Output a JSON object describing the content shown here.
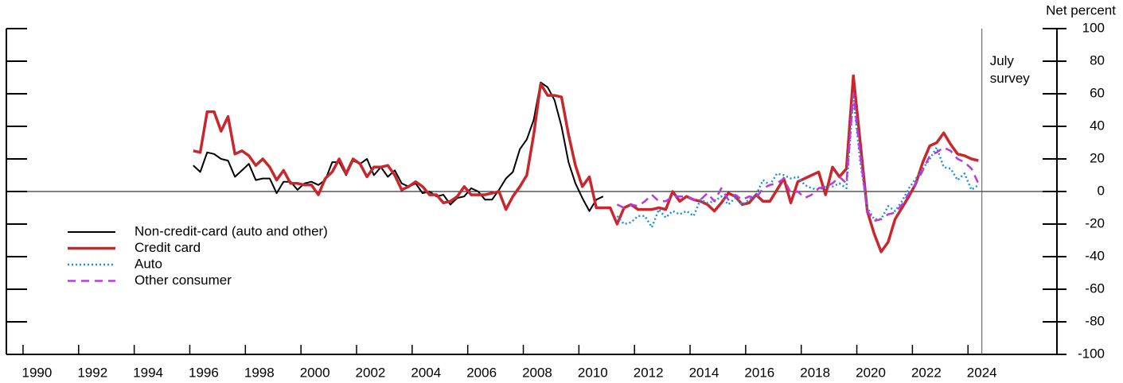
{
  "chart_data": {
    "type": "line",
    "y_label": "Net percent",
    "annotation": {
      "text": "July survey",
      "x": 2024.5
    },
    "legend": "left",
    "zero_line": true,
    "xlim": [
      1989.4,
      2027.2
    ],
    "ylim": [
      -100,
      100
    ],
    "xticks": [
      1990,
      1992,
      1994,
      1996,
      1998,
      2000,
      2002,
      2004,
      2006,
      2008,
      2010,
      2012,
      2014,
      2016,
      2018,
      2020,
      2022,
      2024
    ],
    "yticks": [
      -100,
      -80,
      -60,
      -40,
      -20,
      0,
      20,
      40,
      60,
      80,
      100
    ],
    "x": [
      1996.125,
      1996.375,
      1996.625,
      1996.875,
      1997.125,
      1997.375,
      1997.625,
      1997.875,
      1998.125,
      1998.375,
      1998.625,
      1998.875,
      1999.125,
      1999.375,
      1999.625,
      1999.875,
      2000.125,
      2000.375,
      2000.625,
      2000.875,
      2001.125,
      2001.375,
      2001.625,
      2001.875,
      2002.125,
      2002.375,
      2002.625,
      2002.875,
      2003.125,
      2003.375,
      2003.625,
      2003.875,
      2004.125,
      2004.375,
      2004.625,
      2004.875,
      2005.125,
      2005.375,
      2005.625,
      2005.875,
      2006.125,
      2006.375,
      2006.625,
      2006.875,
      2007.125,
      2007.375,
      2007.625,
      2007.875,
      2008.125,
      2008.375,
      2008.625,
      2008.875,
      2009.125,
      2009.375,
      2009.625,
      2009.875,
      2010.125,
      2010.375,
      2010.625,
      2010.875,
      2011.125,
      2011.375,
      2011.625,
      2011.875,
      2012.125,
      2012.375,
      2012.625,
      2012.875,
      2013.125,
      2013.375,
      2013.625,
      2013.875,
      2014.125,
      2014.375,
      2014.625,
      2014.875,
      2015.125,
      2015.375,
      2015.625,
      2015.875,
      2016.125,
      2016.375,
      2016.625,
      2016.875,
      2017.125,
      2017.375,
      2017.625,
      2017.875,
      2018.125,
      2018.375,
      2018.625,
      2018.875,
      2019.125,
      2019.375,
      2019.625,
      2019.875,
      2020.125,
      2020.375,
      2020.625,
      2020.875,
      2021.125,
      2021.375,
      2021.625,
      2021.875,
      2022.125,
      2022.375,
      2022.625,
      2022.875,
      2023.125,
      2023.375,
      2023.625,
      2023.875,
      2024.125,
      2024.375
    ],
    "series": [
      {
        "name": "Non-credit-card (auto and other)",
        "color": "#000000",
        "width": 2,
        "dash": "solid",
        "values": [
          16,
          12,
          24,
          23,
          20,
          19,
          9,
          13,
          17,
          7,
          8,
          8,
          -1,
          6,
          6,
          1,
          5,
          6,
          4,
          7,
          18,
          18,
          10,
          19,
          17,
          20,
          10,
          15,
          9,
          13,
          5,
          3,
          5,
          -1,
          0,
          -3,
          -2,
          -8,
          -4,
          -3,
          2,
          0,
          -5,
          -5,
          1,
          8,
          12,
          26,
          32,
          44,
          67,
          64,
          56,
          40,
          18,
          5,
          -4,
          -12,
          -5,
          -3,
          null,
          null,
          null,
          null,
          null,
          null,
          null,
          null,
          null,
          null,
          null,
          null,
          null,
          null,
          null,
          null,
          null,
          null,
          null,
          null,
          null,
          null,
          null,
          null,
          null,
          null,
          null,
          null,
          null,
          null,
          null,
          null,
          null,
          null,
          null,
          null,
          null,
          null,
          null,
          null,
          null,
          null,
          null,
          null,
          null,
          null,
          null,
          null,
          null,
          null,
          null,
          null,
          null,
          null
        ]
      },
      {
        "name": "Credit card",
        "color": "#c8282d",
        "width": 3.5,
        "dash": "solid",
        "values": [
          25,
          24,
          49,
          49,
          37,
          46,
          23,
          25,
          22,
          16,
          20,
          15,
          7,
          13,
          5,
          5,
          4,
          4,
          -2,
          8,
          12,
          20,
          11,
          20,
          17,
          9,
          15,
          15,
          16,
          10,
          1,
          3,
          6,
          3,
          -2,
          -2,
          -7,
          -6,
          -3,
          3,
          -2,
          -2,
          -2,
          -1,
          0,
          -11,
          -3,
          3,
          10,
          35,
          66,
          59,
          59,
          58,
          35,
          16,
          3,
          9,
          -10,
          -10,
          -10,
          -20,
          -10,
          -8,
          -11,
          -11,
          -11,
          -10,
          -11,
          0,
          -6,
          -3,
          -5,
          -6,
          -8,
          -12,
          -7,
          -1,
          -3,
          -8,
          -7,
          -2,
          -6,
          -6,
          1,
          8,
          -7,
          6,
          8,
          10,
          12,
          -2,
          15,
          9,
          14,
          71,
          30,
          -12,
          -26,
          -37,
          -31,
          -17,
          -10,
          -3,
          5,
          18,
          28,
          30,
          36,
          29,
          23,
          22,
          20,
          19
        ]
      },
      {
        "name": "Auto",
        "color": "#1f8fe0",
        "width": 2.5,
        "dash": "dotted",
        "values": [
          null,
          null,
          null,
          null,
          null,
          null,
          null,
          null,
          null,
          null,
          null,
          null,
          null,
          null,
          null,
          null,
          null,
          null,
          null,
          null,
          null,
          null,
          null,
          null,
          null,
          null,
          null,
          null,
          null,
          null,
          null,
          null,
          null,
          null,
          null,
          null,
          null,
          null,
          null,
          null,
          null,
          null,
          null,
          null,
          null,
          null,
          null,
          null,
          null,
          null,
          null,
          null,
          null,
          null,
          null,
          null,
          null,
          null,
          null,
          null,
          null,
          -15,
          -20,
          -19,
          -15,
          -15,
          -22,
          -11,
          -16,
          -12,
          -14,
          -12,
          -15,
          -5,
          -7,
          -6,
          -3,
          -8,
          -4,
          -8,
          -5,
          -2,
          7,
          4,
          11,
          10,
          8,
          9,
          4,
          2,
          1,
          3,
          3,
          5,
          2,
          58,
          18,
          -10,
          -17,
          -17,
          -9,
          -12,
          -6,
          2,
          8,
          14,
          20,
          27,
          15,
          14,
          7,
          11,
          1,
          4
        ]
      },
      {
        "name": "Other consumer",
        "color": "#b73be0",
        "width": 2.5,
        "dash": "dashed",
        "values": [
          null,
          null,
          null,
          null,
          null,
          null,
          null,
          null,
          null,
          null,
          null,
          null,
          null,
          null,
          null,
          null,
          null,
          null,
          null,
          null,
          null,
          null,
          null,
          null,
          null,
          null,
          null,
          null,
          null,
          null,
          null,
          null,
          null,
          null,
          null,
          null,
          null,
          null,
          null,
          null,
          null,
          null,
          null,
          null,
          null,
          null,
          null,
          null,
          null,
          null,
          null,
          null,
          null,
          null,
          null,
          null,
          null,
          null,
          null,
          null,
          null,
          -8,
          -10,
          -8,
          -9,
          -6,
          -2,
          -6,
          -6,
          -3,
          -3,
          -3,
          -5,
          -5,
          -1,
          -6,
          2,
          -5,
          -2,
          -5,
          -3,
          -4,
          2,
          4,
          5,
          8,
          -1,
          0,
          -4,
          -2,
          2,
          3,
          5,
          9,
          5,
          60,
          22,
          -12,
          -18,
          -17,
          -14,
          -13,
          -8,
          -1,
          5,
          13,
          22,
          24,
          27,
          25,
          20,
          18,
          14,
          5
        ]
      }
    ]
  }
}
